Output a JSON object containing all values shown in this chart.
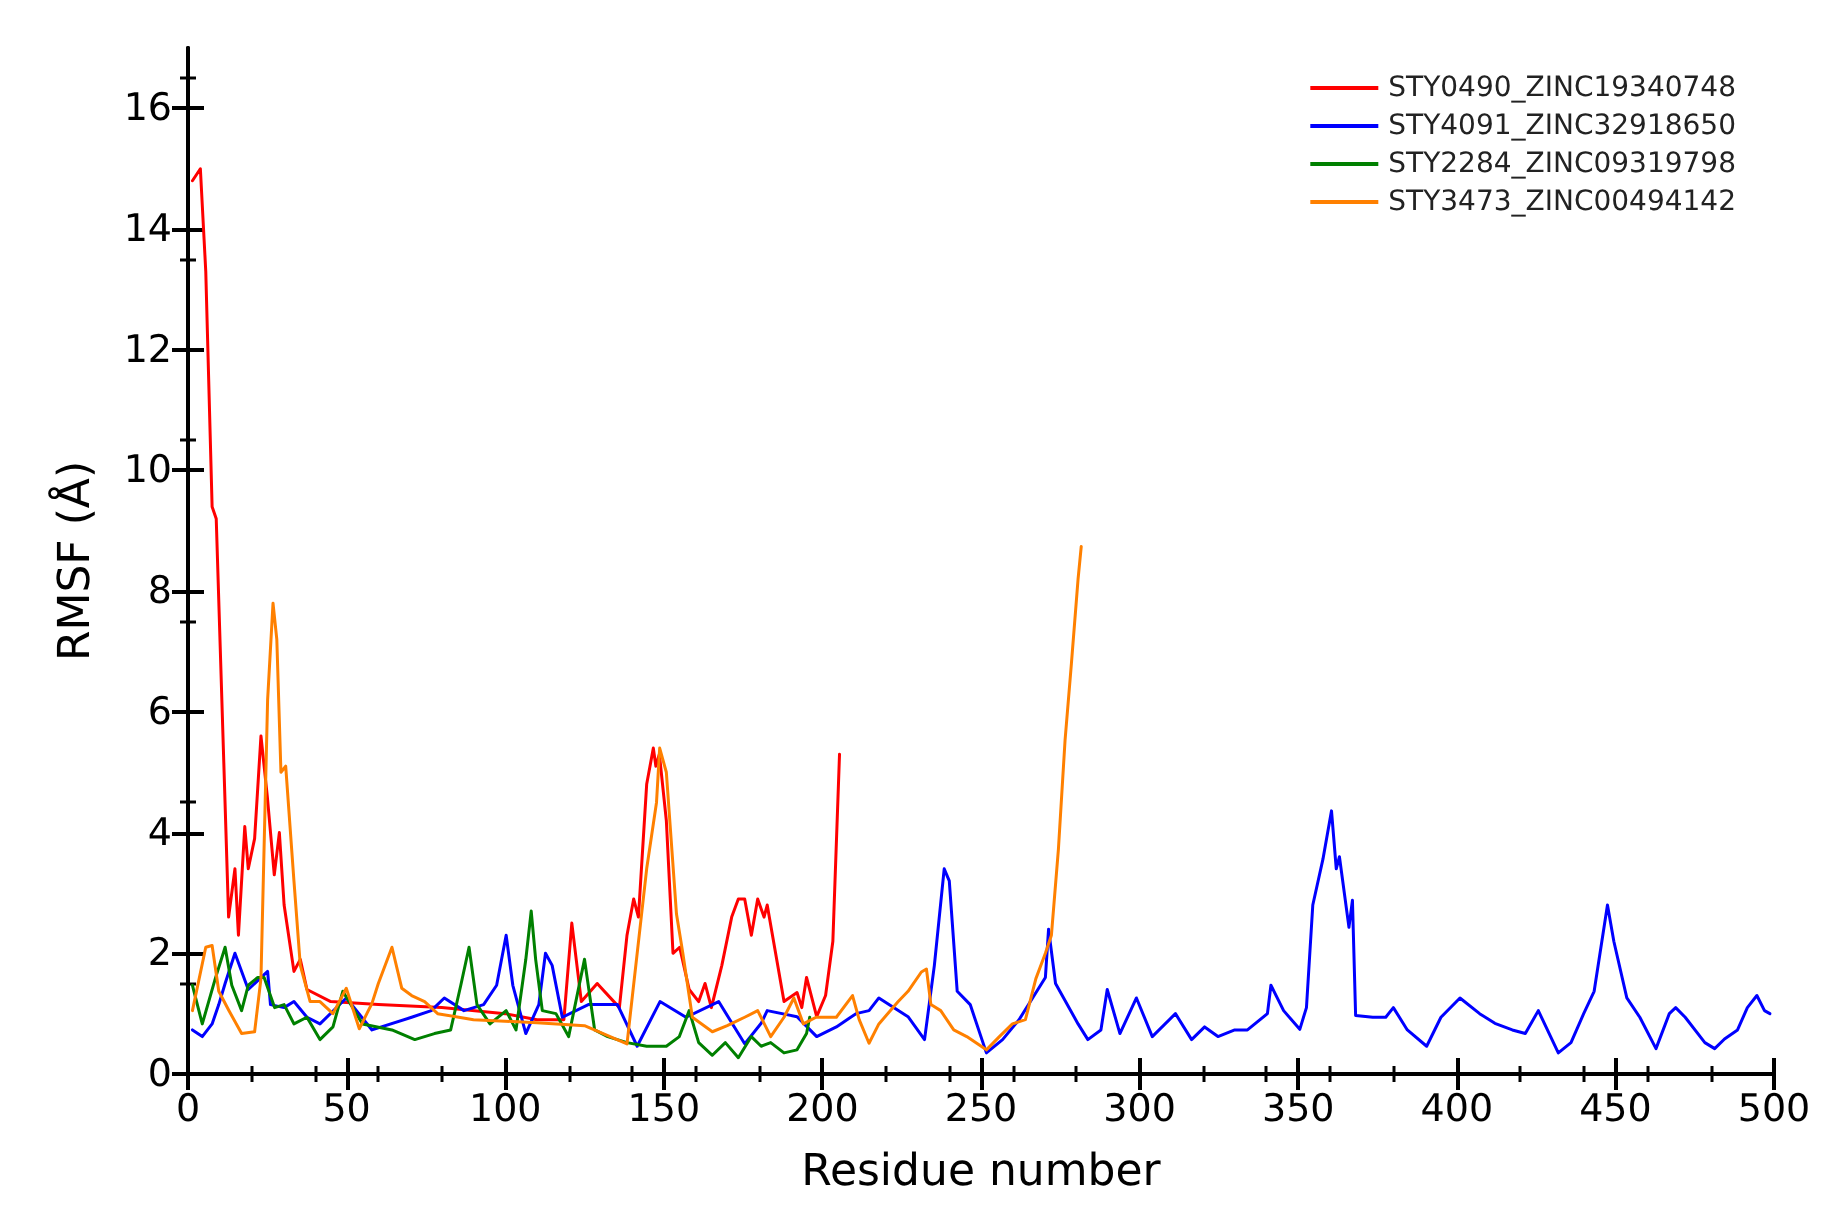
{
  "chart_data": {
    "type": "line",
    "xlabel": "Residue number",
    "ylabel": "RMSF (Å)",
    "xlim": [
      0,
      500
    ],
    "ylim": [
      0,
      17
    ],
    "xticks": [
      0,
      50,
      100,
      150,
      200,
      250,
      300,
      350,
      400,
      450,
      500
    ],
    "yticks": [
      0,
      2,
      4,
      6,
      8,
      10,
      12,
      14,
      16
    ],
    "grid": false,
    "legend": "top right",
    "marker": "none",
    "line_style": "solid",
    "series": [
      {
        "name": "STY0490_ZINC19340748",
        "color": "#ff0000",
        "x": [
          1.4,
          3.9,
          5.6,
          7.6,
          8.9,
          12.8,
          14.8,
          15.9,
          17.9,
          19,
          21,
          23,
          25,
          27.2,
          28.8,
          30.3,
          33.4,
          35.4,
          37.5,
          45,
          60,
          80,
          100,
          110,
          118.5,
          121,
          124,
          129,
          136,
          138.4,
          140.5,
          142,
          144.6,
          146.7,
          147.5,
          148.6,
          150.8,
          152.9,
          155,
          158,
          161,
          163,
          165,
          168.3,
          171.4,
          173.5,
          175.5,
          177.6,
          179.6,
          181.6,
          182.6,
          187.9,
          192,
          193.5,
          195,
          198.2,
          201,
          203.3,
          205.4
        ],
        "values": [
          14.8,
          15,
          13.3,
          9.4,
          9.2,
          2.6,
          3.4,
          2.3,
          4.1,
          3.4,
          3.9,
          5.6,
          4.6,
          3.3,
          4,
          2.8,
          1.7,
          1.9,
          1.4,
          1.2,
          1.15,
          1.1,
          1,
          0.9,
          0.9,
          2.5,
          1.2,
          1.5,
          1.1,
          2.3,
          2.9,
          2.6,
          4.8,
          5.4,
          5.1,
          5.3,
          4.2,
          2,
          2.1,
          1.4,
          1.2,
          1.5,
          1.1,
          1.8,
          2.6,
          2.9,
          2.9,
          2.3,
          2.9,
          2.6,
          2.8,
          1.2,
          1.35,
          1.1,
          1.6,
          0.95,
          1.3,
          2.2,
          5.3
        ]
      },
      {
        "name": "STY4091_ZINC32918650",
        "color": "#0000ff",
        "x": [
          1.4,
          4.5,
          7.6,
          9.7,
          11.7,
          14.8,
          19,
          25.1,
          26,
          30.3,
          33.4,
          37.5,
          41.6,
          49.9,
          58,
          70.5,
          76.7,
          80.8,
          87,
          93.2,
          97.3,
          100.3,
          102.4,
          106.5,
          110.6,
          112.7,
          114.8,
          118,
          126.2,
          135.4,
          141.6,
          148.8,
          157,
          167.3,
          175.5,
          180.7,
          182.6,
          192,
          198.2,
          204.4,
          210.6,
          214.7,
          217.8,
          227,
          232.2,
          235.3,
          238.4,
          240,
          242.5,
          246.6,
          251.7,
          256.8,
          262,
          270.3,
          271.3,
          273.5,
          280.6,
          283.7,
          287.8,
          289.8,
          293.8,
          299,
          304,
          311.3,
          316.4,
          320.5,
          324.7,
          330,
          334,
          340.3,
          341.4,
          345.4,
          350.5,
          352.6,
          354.6,
          357.8,
          360.5,
          362,
          363,
          366,
          367.1,
          368.1,
          373.5,
          377.6,
          380,
          384.4,
          390.5,
          395,
          401,
          407.2,
          412,
          417.5,
          421.6,
          425.7,
          432,
          436,
          440,
          443.3,
          447.5,
          449.5,
          453.6,
          457.7,
          462.8,
          467,
          469,
          472,
          478.2,
          481.3,
          484.4,
          488.5,
          491.6,
          494.6,
          497,
          498.7
        ],
        "values": [
          0.73,
          0.62,
          0.83,
          1.15,
          1.5,
          2,
          1.4,
          1.7,
          1.15,
          1.1,
          1.2,
          0.94,
          0.83,
          1.26,
          0.73,
          0.94,
          1.05,
          1.26,
          1.05,
          1.15,
          1.47,
          2.3,
          1.47,
          0.67,
          1.15,
          2,
          1.8,
          0.94,
          1.15,
          1.15,
          0.46,
          1.2,
          0.94,
          1.2,
          0.5,
          0.84,
          1.05,
          0.95,
          0.62,
          0.78,
          1,
          1.05,
          1.26,
          0.95,
          0.57,
          1.8,
          3.4,
          3.2,
          1.37,
          1.15,
          0.35,
          0.57,
          0.9,
          1.6,
          2.4,
          1.5,
          0.83,
          0.57,
          0.73,
          1.4,
          0.67,
          1.26,
          0.62,
          1,
          0.57,
          0.78,
          0.62,
          0.73,
          0.73,
          1,
          1.47,
          1.05,
          0.74,
          1.1,
          2.8,
          3.56,
          4.36,
          3.4,
          3.6,
          2.43,
          2.88,
          0.97,
          0.94,
          0.94,
          1.1,
          0.73,
          0.46,
          0.94,
          1.26,
          1,
          0.84,
          0.73,
          0.67,
          1.05,
          0.35,
          0.52,
          1,
          1.37,
          2.8,
          2.2,
          1.26,
          0.94,
          0.42,
          1,
          1.1,
          0.94,
          0.52,
          0.42,
          0.58,
          0.73,
          1.1,
          1.3,
          1.05,
          1
        ]
      },
      {
        "name": "STY2284_ZINC09319798",
        "color": "#008000",
        "x": [
          1.4,
          4.5,
          8.6,
          11.7,
          13.8,
          16.9,
          19,
          22,
          24,
          27.3,
          30.3,
          33.4,
          37.5,
          41.6,
          45.7,
          48.8,
          55,
          64.3,
          71.5,
          77.7,
          82.8,
          86,
          88.6,
          91.1,
          95.2,
          100.3,
          103.4,
          106.5,
          108.2,
          109.6,
          111.7,
          116,
          120,
          125,
          128.2,
          132.3,
          138.4,
          144.6,
          150.8,
          154.9,
          158,
          161,
          165.3,
          169.4,
          173.5,
          177.6,
          180.7,
          183.7,
          187.9,
          192,
          195,
          196
        ],
        "values": [
          1.47,
          0.83,
          1.58,
          2.1,
          1.47,
          1.05,
          1.47,
          1.6,
          1.6,
          1.1,
          1.15,
          0.83,
          0.94,
          0.57,
          0.78,
          1.37,
          0.83,
          0.73,
          0.57,
          0.67,
          0.73,
          1.47,
          2.1,
          1.15,
          0.83,
          1.05,
          0.73,
          1.9,
          2.7,
          1.9,
          1.05,
          1,
          0.62,
          1.9,
          0.73,
          0.62,
          0.52,
          0.46,
          0.46,
          0.62,
          1.05,
          0.52,
          0.31,
          0.52,
          0.27,
          0.62,
          0.46,
          0.52,
          0.35,
          0.4,
          0.67,
          0.94
        ]
      },
      {
        "name": "STY3473_ZINC00494142",
        "color": "#ff8000",
        "x": [
          1.4,
          5.6,
          7.6,
          9.7,
          12.8,
          16.9,
          21,
          23,
          25.1,
          26.8,
          28,
          29.3,
          30.8,
          33.4,
          35.4,
          38.5,
          41.6,
          45.7,
          49.9,
          54,
          58,
          60,
          64.3,
          67.4,
          70.5,
          74.6,
          78.7,
          90,
          110,
          125,
          138.4,
          144.6,
          147.7,
          148.7,
          150.8,
          154,
          156,
          159,
          165.3,
          170,
          175.5,
          179.6,
          183.7,
          187.9,
          191,
          194,
          198,
          204.4,
          209.5,
          211.6,
          214.7,
          217.8,
          223.9,
          227,
          231.2,
          232.8,
          234.2,
          237.3,
          241.4,
          245.5,
          251.7,
          255.8,
          259.9,
          264,
          267.3,
          270.3,
          272.2,
          274.4,
          276.5,
          278.5,
          280.6,
          281.6
        ],
        "values": [
          1.05,
          2.1,
          2.13,
          1.37,
          1.06,
          0.67,
          0.7,
          1.58,
          6.2,
          7.8,
          7.2,
          5,
          5.1,
          3.2,
          1.8,
          1.2,
          1.2,
          1,
          1.42,
          0.75,
          1.17,
          1.5,
          2.1,
          1.42,
          1.3,
          1.2,
          1,
          0.9,
          0.85,
          0.8,
          0.5,
          3.4,
          4.5,
          5.4,
          5,
          2.65,
          2,
          0.94,
          0.7,
          0.8,
          0.94,
          1.05,
          0.62,
          0.94,
          1.26,
          0.83,
          0.94,
          0.94,
          1.3,
          0.9,
          0.51,
          0.83,
          1.2,
          1.37,
          1.69,
          1.74,
          1.15,
          1.05,
          0.73,
          0.62,
          0.4,
          0.62,
          0.83,
          0.9,
          1.58,
          2,
          2.3,
          3.72,
          5.53,
          6.8,
          8.2,
          8.74
        ]
      }
    ]
  }
}
